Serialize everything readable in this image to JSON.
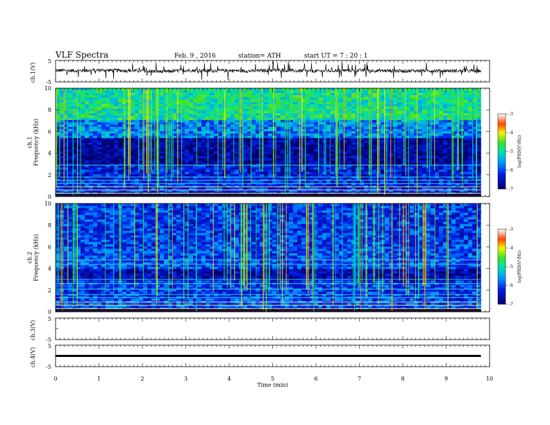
{
  "header": {
    "title": "VLF  Spectra",
    "date": "Feb. 9   , 2016",
    "station": "station= ATH",
    "start": "start  UT  =    7  : 20 : 1"
  },
  "chart_data": [
    {
      "type": "line",
      "name": "ch1-waveform",
      "ylabel": "ch.1(V)",
      "ylim": [
        -5,
        5
      ],
      "yticks": [
        "5",
        "-5"
      ],
      "description_hint": "",
      "x": [
        0,
        0.5,
        1,
        1.5,
        2,
        2.5,
        3,
        3.5,
        4,
        4.5,
        5,
        5.5,
        6,
        6.5,
        7,
        7.5,
        8,
        8.5,
        9,
        9.5,
        9.8
      ],
      "y": [
        0.4,
        0.2,
        0.5,
        0.3,
        0.1,
        -0.2,
        0.4,
        0.2,
        0.3,
        0.1,
        0.5,
        0.2,
        0.0,
        0.3,
        0.4,
        0.2,
        0.1,
        0.3,
        0.2,
        0.1,
        0.2
      ]
    },
    {
      "type": "heatmap",
      "name": "ch1-spectrogram",
      "ylabel": "ch.1\nFrequency  (kHz)",
      "ylim": [
        0,
        10
      ],
      "yticks": [
        "0",
        "2",
        "4",
        "6",
        "8",
        "10"
      ],
      "colorbar": {
        "label": "log(PSD(V²/Hz)",
        "range": [
          -7,
          -3
        ],
        "ticks": [
          "-3",
          "-4",
          "-5",
          "-6",
          "-7"
        ]
      },
      "bands_khz": [
        {
          "from": 0,
          "to": 1.5,
          "level": -6.2
        },
        {
          "from": 1.5,
          "to": 3.0,
          "level": -6.3
        },
        {
          "from": 3.0,
          "to": 5.5,
          "level": -6.7
        },
        {
          "from": 5.5,
          "to": 7.0,
          "level": -5.7
        },
        {
          "from": 7.0,
          "to": 10.0,
          "level": -4.9
        }
      ]
    },
    {
      "type": "heatmap",
      "name": "ch2-spectrogram",
      "ylabel": "ch.2\nFrequency  (kHz)",
      "ylim": [
        0,
        10
      ],
      "yticks": [
        "0",
        "2",
        "4",
        "6",
        "8",
        "10"
      ],
      "colorbar": {
        "label": "log(PSD(V²/Hz)",
        "range": [
          -7,
          -3
        ],
        "ticks": [
          "-3",
          "-4",
          "-5",
          "-6",
          "-7"
        ]
      },
      "bands_khz": [
        {
          "from": 0,
          "to": 1.5,
          "level": -6.0
        },
        {
          "from": 1.5,
          "to": 3.0,
          "level": -6.1
        },
        {
          "from": 3.0,
          "to": 4.0,
          "level": -6.6
        },
        {
          "from": 4.0,
          "to": 6.0,
          "level": -6.0
        },
        {
          "from": 6.0,
          "to": 10.0,
          "level": -6.1
        }
      ]
    },
    {
      "type": "line",
      "name": "ch3-waveform",
      "ylabel": "ch.3(V)",
      "ylim": [
        -5,
        5
      ],
      "yticks": [
        "5",
        "-5"
      ],
      "x": [],
      "y": []
    },
    {
      "type": "line",
      "name": "ch4-waveform",
      "ylabel": "ch.4(V)",
      "ylim": [
        -5,
        5
      ],
      "yticks": [
        "5",
        "-5"
      ],
      "x": [
        0,
        9.8
      ],
      "y": [
        0,
        0
      ]
    }
  ],
  "xaxis": {
    "label": "Time  (min)",
    "xlim": [
      0,
      10
    ],
    "ticks": [
      "0",
      "1",
      "2",
      "3",
      "4",
      "5",
      "6",
      "7",
      "8",
      "9",
      "10"
    ]
  }
}
